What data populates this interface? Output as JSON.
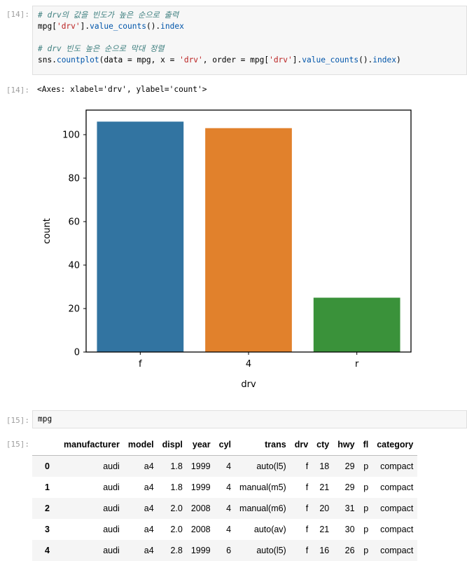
{
  "cells": [
    {
      "prompt": "[14]:",
      "code_lines": [
        [
          {
            "t": "# drv의 값을 빈도가 높은 순으로 출력",
            "c": "cm"
          }
        ],
        [
          {
            "t": "mpg["
          },
          {
            "t": "'drv'",
            "c": "str"
          },
          {
            "t": "]."
          },
          {
            "t": "value_counts",
            "c": "mth"
          },
          {
            "t": "()."
          },
          {
            "t": "index",
            "c": "mth"
          }
        ],
        [
          {
            "t": ""
          }
        ],
        [
          {
            "t": "# drv 빈도 높은 순으로 막대 정렬",
            "c": "cm"
          }
        ],
        [
          {
            "t": "sns."
          },
          {
            "t": "countplot",
            "c": "mth"
          },
          {
            "t": "(data = mpg, x = "
          },
          {
            "t": "'drv'",
            "c": "str"
          },
          {
            "t": ", order = mpg["
          },
          {
            "t": "'drv'",
            "c": "str"
          },
          {
            "t": "]."
          },
          {
            "t": "value_counts",
            "c": "mth"
          },
          {
            "t": "()."
          },
          {
            "t": "index",
            "c": "mth"
          },
          {
            "t": ")"
          }
        ]
      ]
    },
    {
      "prompt": "[15]:",
      "code_lines": [
        [
          {
            "t": "mpg"
          }
        ]
      ]
    }
  ],
  "output14": {
    "prompt": "[14]:",
    "text": "<Axes: xlabel='drv', ylabel='count'>"
  },
  "chart_data": {
    "type": "bar",
    "categories": [
      "f",
      "4",
      "r"
    ],
    "values": [
      106,
      103,
      25
    ],
    "colors": [
      "#3274a1",
      "#e1812c",
      "#3a923a"
    ],
    "xlabel": "drv",
    "ylabel": "count",
    "ylim": [
      0,
      111.3
    ],
    "yticks": [
      0,
      20,
      40,
      60,
      80,
      100
    ],
    "grid": false
  },
  "output15": {
    "prompt": "[15]:",
    "columns": [
      "manufacturer",
      "model",
      "displ",
      "year",
      "cyl",
      "trans",
      "drv",
      "cty",
      "hwy",
      "fl",
      "category"
    ],
    "rows": [
      {
        "index": "0",
        "cells": [
          "audi",
          "a4",
          "1.8",
          "1999",
          "4",
          "auto(l5)",
          "f",
          "18",
          "29",
          "p",
          "compact"
        ]
      },
      {
        "index": "1",
        "cells": [
          "audi",
          "a4",
          "1.8",
          "1999",
          "4",
          "manual(m5)",
          "f",
          "21",
          "29",
          "p",
          "compact"
        ]
      },
      {
        "index": "2",
        "cells": [
          "audi",
          "a4",
          "2.0",
          "2008",
          "4",
          "manual(m6)",
          "f",
          "20",
          "31",
          "p",
          "compact"
        ]
      },
      {
        "index": "3",
        "cells": [
          "audi",
          "a4",
          "2.0",
          "2008",
          "4",
          "auto(av)",
          "f",
          "21",
          "30",
          "p",
          "compact"
        ]
      },
      {
        "index": "4",
        "cells": [
          "audi",
          "a4",
          "2.8",
          "1999",
          "6",
          "auto(l5)",
          "f",
          "16",
          "26",
          "p",
          "compact"
        ]
      }
    ]
  }
}
